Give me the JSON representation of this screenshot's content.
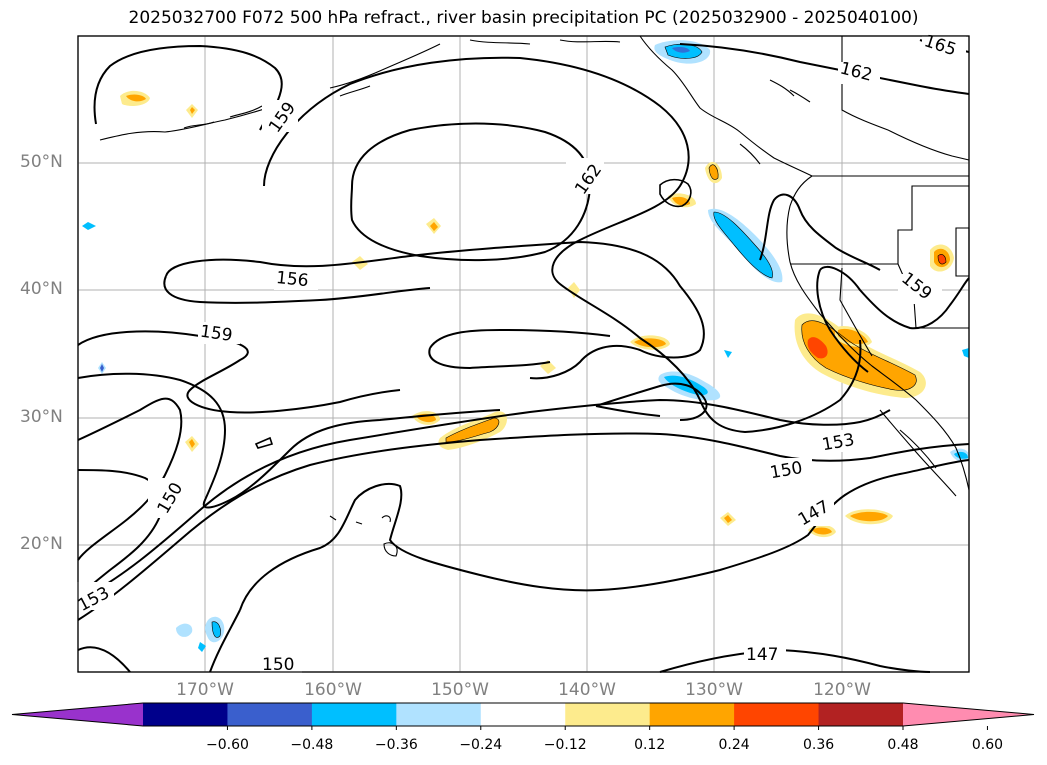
{
  "title": "2025032700 F072 500 hPa refract., river basin precipitation PC (2025032900 - 2025040100)",
  "lat_labels": [
    "50°N",
    "40°N",
    "30°N",
    "20°N"
  ],
  "lon_labels": [
    "170°W",
    "160°W",
    "150°W",
    "140°W",
    "130°W",
    "120°W"
  ],
  "contour_labels": [
    "165",
    "162",
    "159",
    "162",
    "156",
    "159",
    "159",
    "153",
    "150",
    "150",
    "147",
    "153",
    "150",
    "147"
  ],
  "colorbar": {
    "ticks": [
      "−0.60",
      "−0.48",
      "−0.36",
      "−0.24",
      "−0.12",
      "0.12",
      "0.24",
      "0.36",
      "0.48",
      "0.60"
    ],
    "colors": [
      "#9932cc",
      "#00008b",
      "#3a5fcd",
      "#00bfff",
      "#b0e2ff",
      "#ffffff",
      "#fdeb8d",
      "#ffa500",
      "#ff4500",
      "#b22222",
      "#ff8cb0"
    ]
  }
}
